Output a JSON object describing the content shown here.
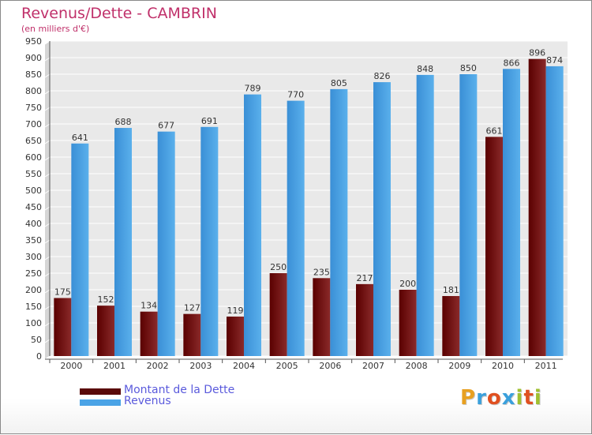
{
  "header": {
    "title": "Revenus/Dette - CAMBRIN",
    "subtitle": "(en milliers d'€)"
  },
  "chart_data": {
    "type": "bar",
    "title": "Revenus/Dette - CAMBRIN",
    "subtitle": "(en milliers d'€)",
    "xlabel": "",
    "ylabel": "",
    "categories": [
      "2000",
      "2001",
      "2002",
      "2003",
      "2004",
      "2005",
      "2006",
      "2007",
      "2008",
      "2009",
      "2010",
      "2011"
    ],
    "series": [
      {
        "name": "Montant de la Dette",
        "color": "#7a1414",
        "values": [
          175,
          152,
          134,
          127,
          119,
          250,
          235,
          217,
          200,
          181,
          661,
          896
        ]
      },
      {
        "name": "Revenus",
        "color": "#4aa3e6",
        "values": [
          641,
          688,
          677,
          691,
          789,
          770,
          805,
          826,
          848,
          850,
          866,
          874
        ]
      }
    ],
    "ylim": [
      0,
      950
    ],
    "ytick_step": 50,
    "grid": true,
    "legend_position": "bottom-left"
  },
  "legend": {
    "items": [
      {
        "label": "Montant de la Dette",
        "color": "#7a1414"
      },
      {
        "label": "Revenus",
        "color": "#4aa3e6"
      }
    ]
  },
  "logo": {
    "letters": [
      "P",
      "r",
      "o",
      "x",
      "i",
      "t",
      "i"
    ],
    "colors": [
      "#e8a020",
      "#3aa0dc",
      "#e05020",
      "#3aa0dc",
      "#a0c030",
      "#e05020",
      "#a0c030"
    ]
  }
}
